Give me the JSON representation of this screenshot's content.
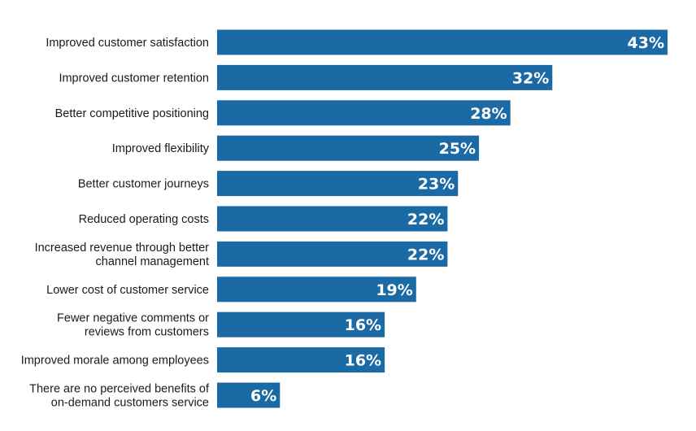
{
  "chart_data": {
    "type": "bar",
    "orientation": "horizontal",
    "title": "",
    "xlabel": "",
    "ylabel": "",
    "value_suffix": "%",
    "xlim": [
      0,
      43
    ],
    "grid": false,
    "legend": "none",
    "bar_color": "#1b6aa5",
    "categories": [
      [
        "Improved customer satisfaction"
      ],
      [
        "Improved customer retention"
      ],
      [
        "Better competitive positioning"
      ],
      [
        "Improved flexibility"
      ],
      [
        "Better customer journeys"
      ],
      [
        "Reduced operating costs"
      ],
      [
        "Increased revenue through better",
        "channel management"
      ],
      [
        "Lower cost of customer service"
      ],
      [
        "Fewer negative comments or",
        "reviews from customers"
      ],
      [
        "Improved morale among employees"
      ],
      [
        "There are no perceived benefits of",
        "on-demand customers service"
      ]
    ],
    "values": [
      43,
      32,
      28,
      25,
      23,
      22,
      22,
      19,
      16,
      16,
      6
    ]
  }
}
